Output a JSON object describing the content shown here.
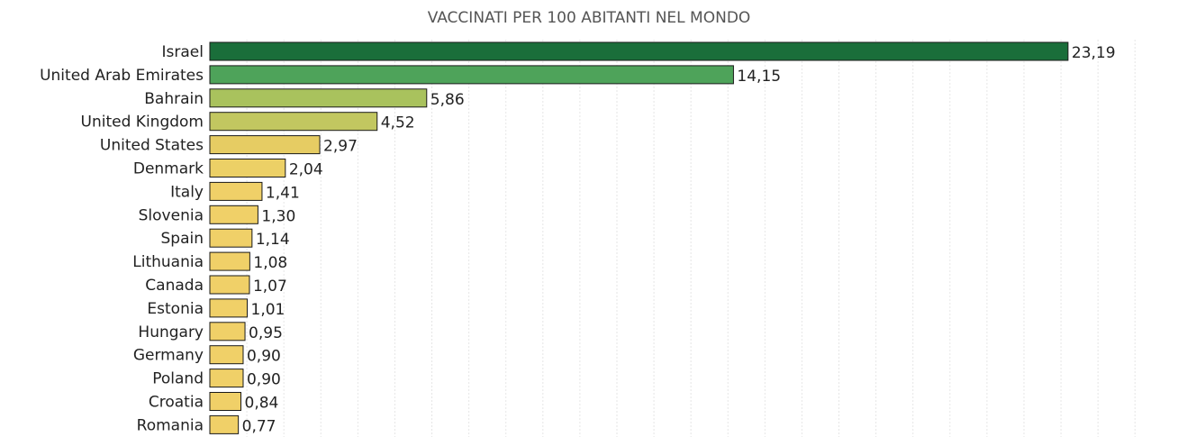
{
  "chart_data": {
    "type": "bar",
    "orientation": "horizontal",
    "title": "VACCINATI PER 100 ABITANTI NEL MONDO",
    "categories": [
      "Israel",
      "United Arab Emirates",
      "Bahrain",
      "United Kingdom",
      "United States",
      "Denmark",
      "Italy",
      "Slovenia",
      "Spain",
      "Lithuania",
      "Canada",
      "Estonia",
      "Hungary",
      "Germany",
      "Poland",
      "Croatia",
      "Romania"
    ],
    "values": [
      23.19,
      14.15,
      5.86,
      4.52,
      2.97,
      2.04,
      1.41,
      1.3,
      1.14,
      1.08,
      1.07,
      1.01,
      0.95,
      0.9,
      0.9,
      0.84,
      0.77
    ],
    "value_labels": [
      "23,19",
      "14,15",
      "5,86",
      "4,52",
      "2,97",
      "2,04",
      "1,41",
      "1,30",
      "1,14",
      "1,08",
      "1,07",
      "1,01",
      "0,95",
      "0,90",
      "0,90",
      "0,84",
      "0,77"
    ],
    "bar_colors": [
      "#1a6e3a",
      "#4ea35a",
      "#a9c25d",
      "#c2c760",
      "#e6cc63",
      "#ecd066",
      "#f0d068",
      "#f0d068",
      "#f0d068",
      "#f0d068",
      "#f0d068",
      "#f0d068",
      "#f0d068",
      "#f0d068",
      "#f0d068",
      "#f0d068",
      "#f0d068"
    ],
    "xlim": [
      0,
      25
    ],
    "grid": "vertical dashed",
    "legend": "none"
  }
}
